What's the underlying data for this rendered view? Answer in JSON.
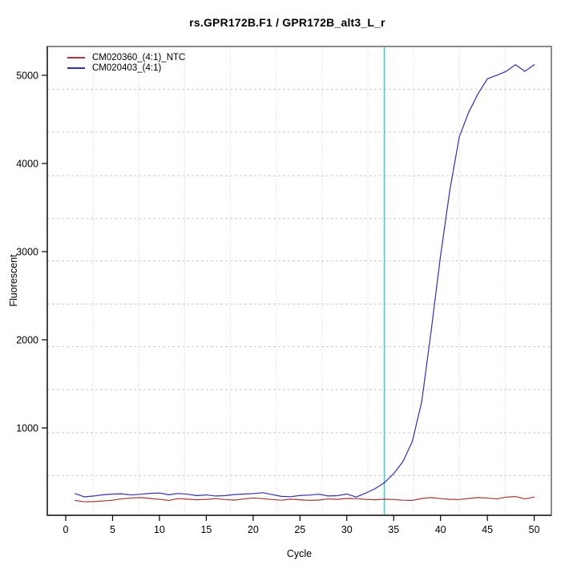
{
  "chart_data": {
    "type": "line",
    "title": "rs.GPR172B.F1 / GPR172B_alt3_L_r",
    "xlabel": "Cycle",
    "ylabel": "Fluorescent",
    "axes": {
      "xlim": [
        -1.97,
        51.83
      ],
      "ylim": [
        9,
        5327
      ],
      "xticks": [
        0,
        5,
        10,
        15,
        20,
        25,
        30,
        35,
        40,
        45,
        50
      ],
      "yticks": [
        1000,
        2000,
        3000,
        4000,
        5000
      ]
    },
    "gridlines": {
      "color": "#c9c9c9",
      "x": [
        2.91,
        7.8,
        12.69,
        17.58,
        22.47,
        27.36,
        32.25,
        37.14,
        42.03,
        46.92
      ],
      "y": [
        460,
        947,
        1434,
        1921,
        2406,
        2894,
        3375,
        3861,
        4355,
        4842
      ]
    },
    "threshold_line": {
      "x": 34,
      "color": "#00e2e8"
    },
    "legend_position": "top-left",
    "x_start_cycle": 1,
    "series": [
      {
        "name": "CM020360_(4:1)_NTC",
        "color": "#a03636",
        "values": [
          178,
          162,
          165,
          172,
          180,
          196,
          205,
          210,
          200,
          190,
          178,
          198,
          192,
          185,
          190,
          198,
          188,
          182,
          195,
          205,
          198,
          188,
          180,
          192,
          185,
          178,
          182,
          195,
          190,
          200,
          198,
          190,
          185,
          192,
          188,
          180,
          178,
          200,
          210,
          198,
          190,
          188,
          200,
          210,
          205,
          195,
          215,
          222,
          195,
          215
        ]
      },
      {
        "name": "CM020403_(4:1)",
        "color": "#3232a0",
        "values": [
          255,
          218,
          228,
          242,
          250,
          252,
          240,
          248,
          258,
          262,
          242,
          256,
          248,
          232,
          240,
          228,
          232,
          244,
          250,
          255,
          265,
          245,
          224,
          220,
          234,
          238,
          248,
          228,
          232,
          250,
          216,
          260,
          310,
          378,
          480,
          620,
          850,
          1300,
          2100,
          2950,
          3700,
          4300,
          4580,
          4790,
          4960,
          5000,
          5045,
          5120,
          5045,
          5120
        ]
      }
    ]
  }
}
